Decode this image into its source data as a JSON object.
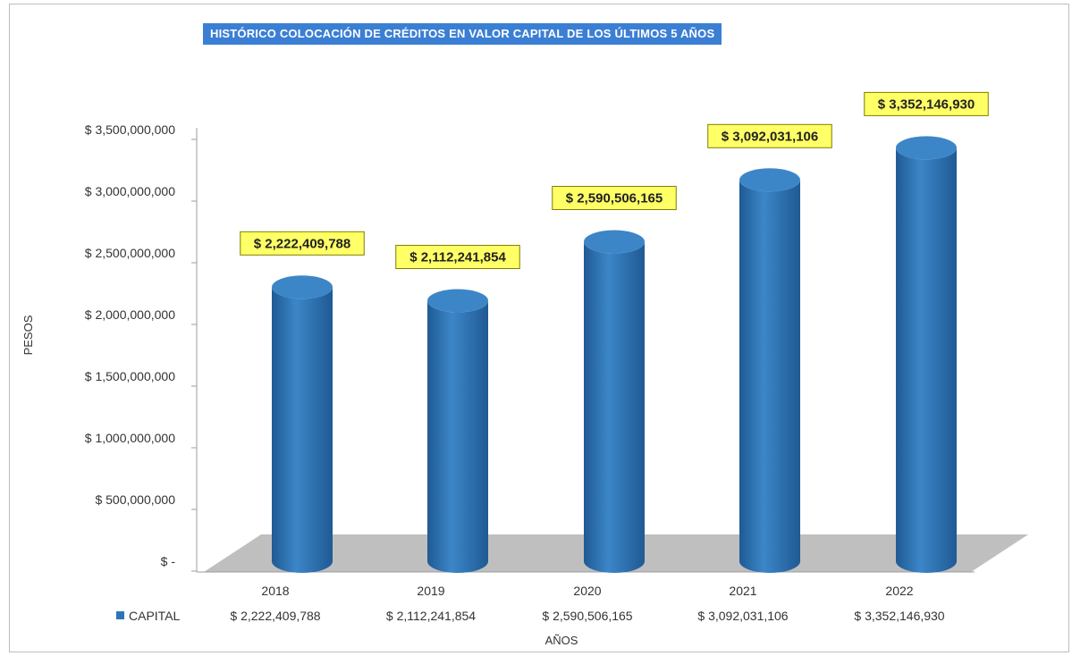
{
  "chart_data": {
    "type": "bar",
    "title": "HISTÓRICO COLOCACIÓN DE CRÉDITOS EN VALOR CAPITAL DE LOS ÚLTIMOS 5 AÑOS",
    "xlabel": "AÑOS",
    "ylabel": "PESOS",
    "categories": [
      "2018",
      "2019",
      "2020",
      "2021",
      "2022"
    ],
    "series": [
      {
        "name": "CAPITAL",
        "values": [
          2222409788,
          2112241854,
          2590506165,
          3092031106,
          3352146930
        ],
        "data_labels": [
          "$ 2,222,409,788",
          "$ 2,112,241,854",
          "$ 2,590,506,165",
          "$ 3,092,031,106",
          "$ 3,352,146,930"
        ],
        "color": "#2e75b6"
      }
    ],
    "yticks": [
      0,
      500000000,
      1000000000,
      1500000000,
      2000000000,
      2500000000,
      3000000000,
      3500000000
    ],
    "ytick_labels": [
      "$ -",
      "$ 500,000,000",
      "$ 1,000,000,000",
      "$ 1,500,000,000",
      "$ 2,000,000,000",
      "$ 2,500,000,000",
      "$ 3,000,000,000",
      "$ 3,500,000,000"
    ],
    "ylim": [
      0,
      3500000000
    ],
    "grid": false,
    "legend": "data-table",
    "style": "3d-cylinder",
    "colors": {
      "bar": "#2e75b6",
      "bar_dark": "#1f5a94",
      "bar_light": "#3c86c8",
      "floor": "#bfbfbf",
      "label_fill": "#ffff66",
      "label_border": "#7f7f00",
      "title_bg": "#3b7fd4"
    }
  }
}
